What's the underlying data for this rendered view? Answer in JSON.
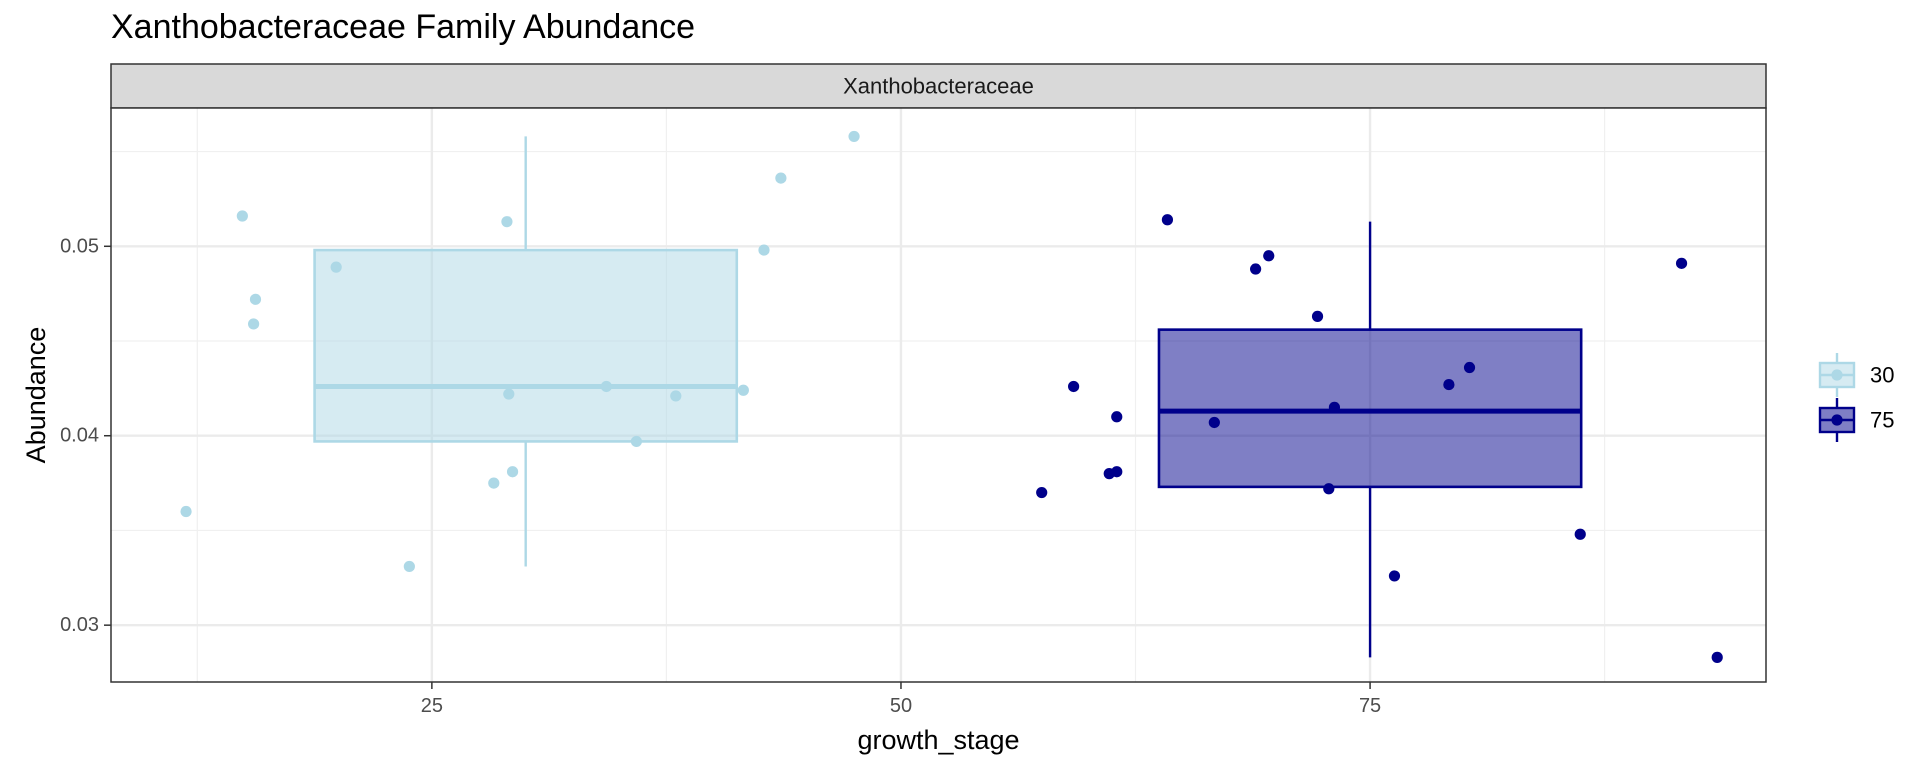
{
  "chart_data": {
    "type": "box",
    "title": "Xanthobacteraceae Family Abundance",
    "facet_label": "Xanthobacteraceae",
    "xlabel": "growth_stage",
    "ylabel": "Abundance",
    "xlim": [
      7.9,
      96.1
    ],
    "ylim": [
      0.027,
      0.0573
    ],
    "x_ticks": [
      25,
      50,
      75
    ],
    "y_ticks": [
      0.03,
      0.04,
      0.05
    ],
    "x_tick_labels": [
      "25",
      "50",
      "75"
    ],
    "y_tick_labels": [
      "0.03",
      "0.04",
      "0.05"
    ],
    "grid": true,
    "legend_position": "right",
    "series": [
      {
        "name": "30",
        "color": "#add8e6",
        "fill": "#add8e6",
        "fill_opacity": 0.5,
        "box": {
          "x_min": 18.75,
          "x_max": 41.25,
          "whisker_x": 30,
          "q1": 0.0397,
          "median": 0.0426,
          "q3": 0.0498,
          "whisker_low": 0.0331,
          "whisker_high": 0.0558
        },
        "points": [
          {
            "x": 11.9,
            "y": 0.036
          },
          {
            "x": 14.9,
            "y": 0.0516
          },
          {
            "x": 15.6,
            "y": 0.0472
          },
          {
            "x": 15.5,
            "y": 0.0459
          },
          {
            "x": 19.9,
            "y": 0.0489
          },
          {
            "x": 23.8,
            "y": 0.0331
          },
          {
            "x": 28.3,
            "y": 0.0375
          },
          {
            "x": 29.0,
            "y": 0.0513
          },
          {
            "x": 29.1,
            "y": 0.0422
          },
          {
            "x": 29.3,
            "y": 0.0381
          },
          {
            "x": 34.3,
            "y": 0.0426
          },
          {
            "x": 35.9,
            "y": 0.0397
          },
          {
            "x": 38.0,
            "y": 0.0421
          },
          {
            "x": 41.6,
            "y": 0.0424
          },
          {
            "x": 42.7,
            "y": 0.0498
          },
          {
            "x": 43.6,
            "y": 0.0536
          },
          {
            "x": 47.5,
            "y": 0.0558
          }
        ]
      },
      {
        "name": "75",
        "color": "#00008b",
        "fill": "#00008b",
        "fill_opacity": 0.5,
        "box": {
          "x_min": 63.75,
          "x_max": 86.25,
          "whisker_x": 75,
          "q1": 0.0373,
          "median": 0.0413,
          "q3": 0.0456,
          "whisker_low": 0.0283,
          "whisker_high": 0.0513
        },
        "points": [
          {
            "x": 57.5,
            "y": 0.037
          },
          {
            "x": 59.2,
            "y": 0.0426
          },
          {
            "x": 61.1,
            "y": 0.038
          },
          {
            "x": 61.5,
            "y": 0.041
          },
          {
            "x": 61.5,
            "y": 0.0381
          },
          {
            "x": 64.2,
            "y": 0.0514
          },
          {
            "x": 66.7,
            "y": 0.0407
          },
          {
            "x": 68.9,
            "y": 0.0488
          },
          {
            "x": 69.6,
            "y": 0.0495
          },
          {
            "x": 72.2,
            "y": 0.0463
          },
          {
            "x": 72.8,
            "y": 0.0372
          },
          {
            "x": 73.1,
            "y": 0.0415
          },
          {
            "x": 76.3,
            "y": 0.0326
          },
          {
            "x": 79.2,
            "y": 0.0427
          },
          {
            "x": 80.3,
            "y": 0.0436
          },
          {
            "x": 86.2,
            "y": 0.0348
          },
          {
            "x": 91.6,
            "y": 0.0491
          },
          {
            "x": 93.5,
            "y": 0.0283
          }
        ]
      }
    ]
  }
}
